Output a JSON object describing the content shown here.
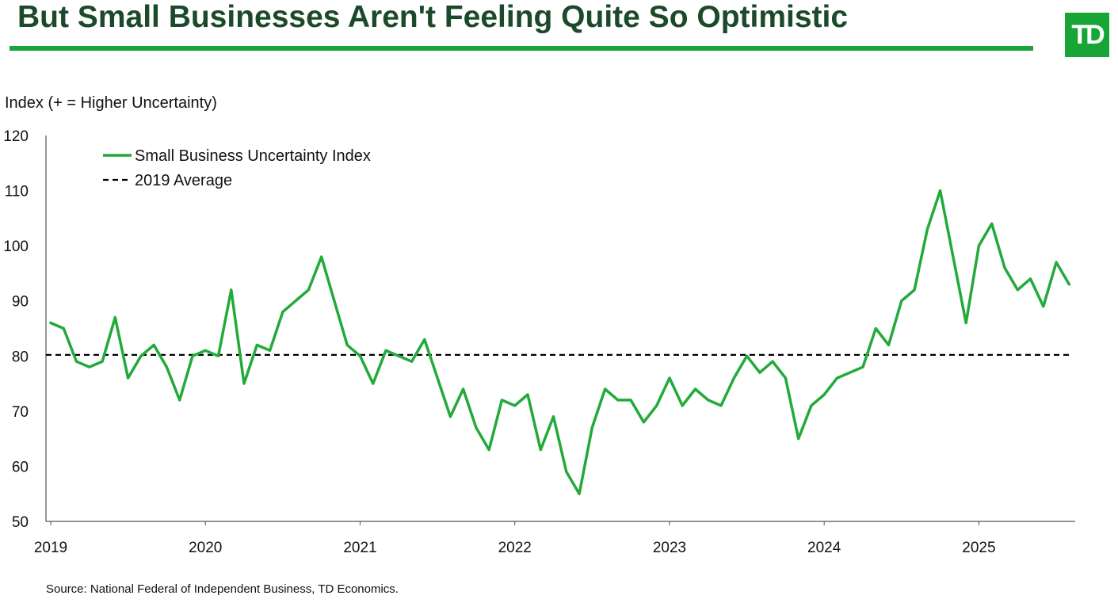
{
  "title": "But Small Businesses Aren't Feeling Quite So Optimistic",
  "logo_text": "TD",
  "source": "Source: National Federal of Independent Business, TD Economics.",
  "colors": {
    "title": "#1b4a2a",
    "accent": "#1aa33a",
    "series": "#22aa3a",
    "average": "#000000"
  },
  "chart_data": {
    "type": "line",
    "ylabel": "Index (+ = Higher Uncertainty)",
    "xlabel": "",
    "ylim": [
      50,
      120
    ],
    "yticks": [
      50,
      60,
      70,
      80,
      90,
      100,
      110,
      120
    ],
    "x_tick_labels": [
      "2019",
      "2020",
      "2021",
      "2022",
      "2023",
      "2024",
      "2025"
    ],
    "x_start": "2019-01",
    "legend_position": "top-left",
    "grid": false,
    "series": [
      {
        "name": "Small Business Uncertainty Index",
        "style": "solid",
        "values": [
          86,
          85,
          79,
          78,
          79,
          87,
          76,
          80,
          82,
          78,
          72,
          80,
          81,
          80,
          92,
          75,
          82,
          81,
          88,
          90,
          92,
          98,
          90,
          82,
          80,
          75,
          81,
          80,
          79,
          83,
          76,
          69,
          74,
          67,
          63,
          72,
          71,
          73,
          63,
          69,
          59,
          55,
          67,
          74,
          72,
          72,
          68,
          71,
          76,
          71,
          74,
          72,
          71,
          76,
          80,
          77,
          79,
          76,
          65,
          71,
          73,
          76,
          77,
          78,
          85,
          82,
          90,
          92,
          103,
          110,
          98,
          86,
          100,
          104,
          96,
          92,
          94,
          89,
          97,
          93
        ]
      },
      {
        "name": "2019 Average",
        "style": "dashed",
        "value": 80.2
      }
    ]
  }
}
